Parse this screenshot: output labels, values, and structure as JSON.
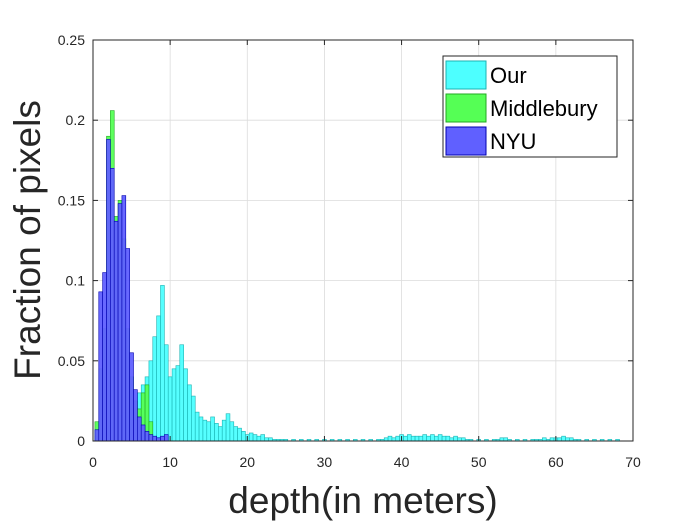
{
  "chart_data": {
    "type": "bar",
    "subtype": "overlaid-histogram",
    "xlabel": "depth(in meters)",
    "ylabel": "Fraction of pixels",
    "xlim": [
      0,
      70
    ],
    "ylim": [
      0,
      0.25
    ],
    "xticks": [
      "0",
      "10",
      "20",
      "30",
      "40",
      "50",
      "60",
      "70"
    ],
    "yticks": [
      "0",
      "0.05",
      "0.1",
      "0.15",
      "0.2",
      "0.25"
    ],
    "grid": true,
    "legend_position": "top-right",
    "bin_width": 0.5,
    "series": [
      {
        "name": "Our",
        "color": "#4dffff",
        "edge": "#1ab3b3",
        "x": [
          0.5,
          1.0,
          1.5,
          2.0,
          2.5,
          3.0,
          3.5,
          4.0,
          4.5,
          5.0,
          5.5,
          6.0,
          6.5,
          7.0,
          7.5,
          8.0,
          8.5,
          9.0,
          9.5,
          10.0,
          10.5,
          11.0,
          11.5,
          12.0,
          12.5,
          13.0,
          13.5,
          14.0,
          14.5,
          15.0,
          15.5,
          16.0,
          16.5,
          17.0,
          17.5,
          18.0,
          18.5,
          19.0,
          19.5,
          20.0,
          20.5,
          21.0,
          21.5,
          22.0,
          22.5,
          23.0,
          23.5,
          24.0,
          24.5,
          25,
          26,
          27,
          28,
          29,
          30,
          31,
          32,
          33,
          34,
          35,
          36,
          37,
          37.5,
          38,
          38.5,
          39,
          39.5,
          40,
          40.5,
          41,
          41.5,
          42,
          42.5,
          43,
          43.5,
          44,
          44.5,
          45,
          45.5,
          46,
          46.5,
          47,
          47.5,
          48,
          48.5,
          49,
          50,
          51,
          52,
          52.5,
          53,
          53.5,
          54,
          55,
          56,
          57,
          57.5,
          58,
          58.5,
          59,
          59.5,
          60,
          60.5,
          61,
          61.5,
          62,
          62.5,
          63,
          64,
          65,
          66,
          67,
          68
        ],
        "values": [
          0.003,
          0.005,
          0.008,
          0.01,
          0.012,
          0.014,
          0.016,
          0.018,
          0.02,
          0.022,
          0.025,
          0.03,
          0.035,
          0.04,
          0.05,
          0.065,
          0.078,
          0.097,
          0.06,
          0.04,
          0.045,
          0.047,
          0.06,
          0.045,
          0.035,
          0.028,
          0.018,
          0.015,
          0.013,
          0.012,
          0.015,
          0.011,
          0.009,
          0.013,
          0.017,
          0.012,
          0.009,
          0.008,
          0.006,
          0.004,
          0.005,
          0.004,
          0.003,
          0.004,
          0.002,
          0.002,
          0.001,
          0.001,
          0.001,
          0.001,
          0.001,
          0.001,
          0.001,
          0.001,
          0.001,
          0.001,
          0.001,
          0.001,
          0.001,
          0.001,
          0.001,
          0.001,
          0.001,
          0.002,
          0.003,
          0.002,
          0.003,
          0.004,
          0.003,
          0.004,
          0.003,
          0.003,
          0.003,
          0.004,
          0.003,
          0.004,
          0.003,
          0.004,
          0.003,
          0.003,
          0.002,
          0.003,
          0.002,
          0.002,
          0.001,
          0.001,
          0.001,
          0.001,
          0.001,
          0.001,
          0.002,
          0.002,
          0.001,
          0.001,
          0.001,
          0.001,
          0.001,
          0.001,
          0.002,
          0.001,
          0.002,
          0.002,
          0.002,
          0.003,
          0.002,
          0.002,
          0.001,
          0.001,
          0.001,
          0.001,
          0.001,
          0.001,
          0.001
        ]
      },
      {
        "name": "Middlebury",
        "color": "#55ff55",
        "edge": "#22aa22",
        "x": [
          0.5,
          1.0,
          1.5,
          2.0,
          2.5,
          3.0,
          3.5,
          4.0,
          4.5,
          5.0,
          5.5,
          6.0,
          6.5,
          7.0,
          7.5
        ],
        "values": [
          0.012,
          0.045,
          0.07,
          0.19,
          0.206,
          0.14,
          0.15,
          0.126,
          0.07,
          0.04,
          0.025,
          0.02,
          0.03,
          0.035,
          0.012
        ]
      },
      {
        "name": "NYU",
        "color": "#6060ff",
        "edge": "#0000b0",
        "x": [
          0.5,
          1.0,
          1.5,
          2.0,
          2.5,
          3.0,
          3.5,
          4.0,
          4.5,
          5.0,
          5.5,
          6.0,
          6.5,
          7.0,
          7.5,
          8.0,
          8.5,
          9.0,
          9.5
        ],
        "values": [
          0.007,
          0.093,
          0.105,
          0.188,
          0.17,
          0.137,
          0.148,
          0.153,
          0.12,
          0.055,
          0.032,
          0.015,
          0.01,
          0.006,
          0.004,
          0.003,
          0.002,
          0.003,
          0.004
        ]
      }
    ]
  }
}
